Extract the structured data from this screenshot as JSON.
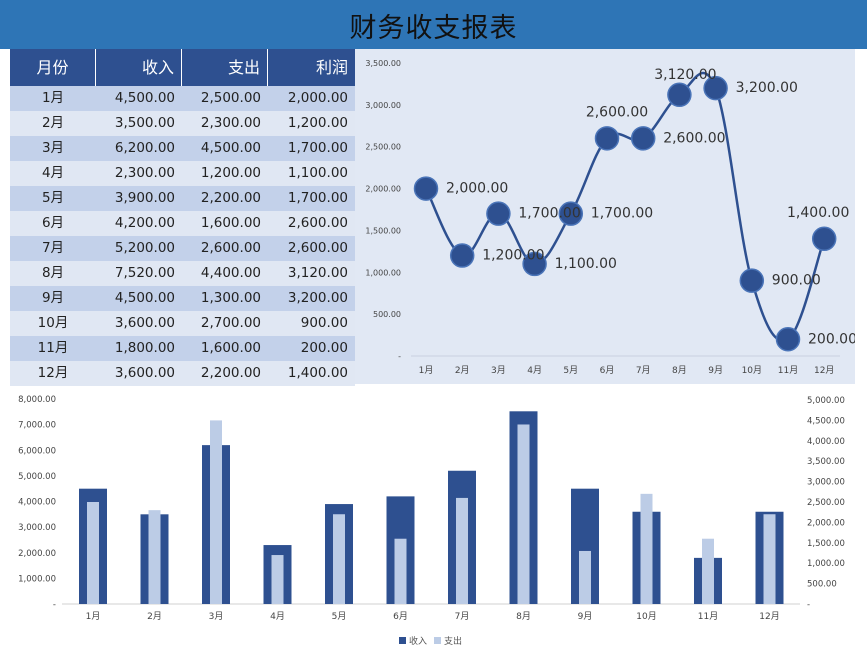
{
  "header": {
    "title": "财务收支报表",
    "bg_color": "#2E75B6"
  },
  "table": {
    "columns": [
      "月份",
      "收入",
      "支出",
      "利润"
    ],
    "rows": [
      [
        "1月",
        "4,500.00",
        "2,500.00",
        "2,000.00"
      ],
      [
        "2月",
        "3,500.00",
        "2,300.00",
        "1,200.00"
      ],
      [
        "3月",
        "6,200.00",
        "4,500.00",
        "1,700.00"
      ],
      [
        "4月",
        "2,300.00",
        "1,200.00",
        "1,100.00"
      ],
      [
        "5月",
        "3,900.00",
        "2,200.00",
        "1,700.00"
      ],
      [
        "6月",
        "4,200.00",
        "1,600.00",
        "2,600.00"
      ],
      [
        "7月",
        "5,200.00",
        "2,600.00",
        "2,600.00"
      ],
      [
        "8月",
        "7,520.00",
        "4,400.00",
        "3,120.00"
      ],
      [
        "9月",
        "4,500.00",
        "1,300.00",
        "3,200.00"
      ],
      [
        "10月",
        "3,600.00",
        "2,700.00",
        "900.00"
      ],
      [
        "11月",
        "1,800.00",
        "1,600.00",
        "200.00"
      ],
      [
        "12月",
        "3,600.00",
        "2,200.00",
        "1,400.00"
      ]
    ],
    "header_color": "#2E5090",
    "row_colors": [
      "#C3D1EA",
      "#E0E7F3"
    ]
  },
  "chart_data": [
    {
      "type": "line",
      "title": "",
      "smooth": true,
      "categories": [
        "1月",
        "2月",
        "3月",
        "4月",
        "5月",
        "6月",
        "7月",
        "8月",
        "9月",
        "10月",
        "11月",
        "12月"
      ],
      "series": [
        {
          "name": "利润",
          "values": [
            2000,
            1200,
            1700,
            1100,
            1700,
            2600,
            2600,
            3120,
            3200,
            900,
            200,
            1400
          ],
          "color": "#2E5090"
        }
      ],
      "data_labels": [
        "2,000.00",
        "1,200.00",
        "1,700.00",
        "1,100.00",
        "1,700.00",
        "2,600.00",
        "2,600.00",
        "3,120.00",
        "3,200.00",
        "900.00",
        "200.00",
        "1,400.00"
      ],
      "yticks": [
        "-",
        "500.00",
        "1,000.00",
        "1,500.00",
        "2,000.00",
        "2,500.00",
        "3,000.00",
        "3,500.00"
      ],
      "ylim": [
        0,
        3500
      ],
      "xlabel": "",
      "ylabel": "",
      "grid": false,
      "background": "#E1E8F4"
    },
    {
      "type": "bar",
      "title": "",
      "categories": [
        "1月",
        "2月",
        "3月",
        "4月",
        "5月",
        "6月",
        "7月",
        "8月",
        "9月",
        "10月",
        "11月",
        "12月"
      ],
      "series": [
        {
          "name": "收入",
          "axis": "primary",
          "values": [
            4500,
            3500,
            6200,
            2300,
            3900,
            4200,
            5200,
            7520,
            4500,
            3600,
            1800,
            3600
          ],
          "color": "#2E5090"
        },
        {
          "name": "支出",
          "axis": "secondary",
          "values": [
            2500,
            2300,
            4500,
            1200,
            2200,
            1600,
            2600,
            4400,
            1300,
            2700,
            1600,
            2200
          ],
          "color": "#BCCCE6"
        }
      ],
      "yticks_left": [
        "-",
        "1,000.00",
        "2,000.00",
        "3,000.00",
        "4,000.00",
        "5,000.00",
        "6,000.00",
        "7,000.00",
        "8,000.00"
      ],
      "ylim_left": [
        0,
        8000
      ],
      "yticks_right": [
        "-",
        "500.00",
        "1,000.00",
        "1,500.00",
        "2,000.00",
        "2,500.00",
        "3,000.00",
        "3,500.00",
        "4,000.00",
        "4,500.00",
        "5,000.00"
      ],
      "ylim_right": [
        0,
        5000
      ],
      "legend": [
        "收入",
        "支出"
      ],
      "legend_position": "bottom",
      "grid": false
    }
  ]
}
